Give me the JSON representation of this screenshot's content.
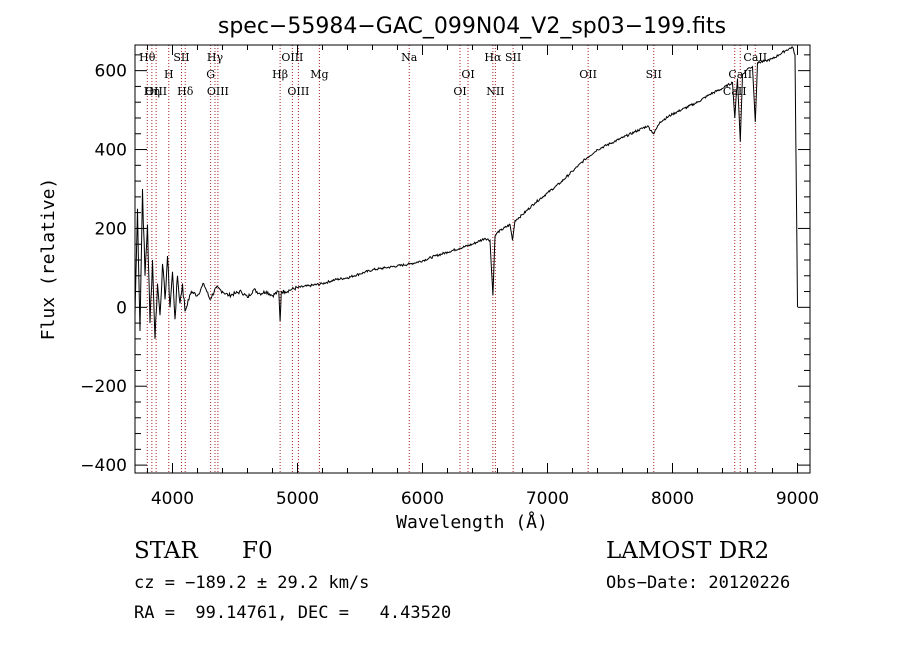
{
  "chart_data": {
    "type": "line",
    "title": "spec−55984−GAC_099N04_V2_sp03−199.fits",
    "xlabel": "Wavelength (Å)",
    "ylabel": "Flux (relative)",
    "xlim": [
      3700,
      9100
    ],
    "ylim": [
      -420,
      665
    ],
    "x_ticks": [
      4000,
      5000,
      6000,
      7000,
      8000,
      9000
    ],
    "y_ticks": [
      -400,
      -200,
      0,
      200,
      400,
      600
    ],
    "x_tick_labels": [
      "4000",
      "5000",
      "6000",
      "7000",
      "8000",
      "9000"
    ],
    "y_tick_labels": [
      "−400",
      "−200",
      "0",
      "200",
      "400",
      "600"
    ],
    "grid": false,
    "line_color": "#000000",
    "marker_line_color": "#aa2222",
    "series": [
      {
        "x": [
          3700,
          3720,
          3740,
          3760,
          3780,
          3800,
          3820,
          3840,
          3860,
          3880,
          3900,
          3920,
          3940,
          3960,
          3980,
          4000,
          4020,
          4040,
          4060,
          4080,
          4100,
          4150,
          4200,
          4250,
          4300,
          4350,
          4400,
          4450,
          4500,
          4550,
          4600,
          4650,
          4700,
          4750,
          4800,
          4850,
          4861,
          4870,
          4900,
          4950,
          5000,
          5100,
          5200,
          5300,
          5400,
          5500,
          5600,
          5700,
          5800,
          5900,
          6000,
          6100,
          6200,
          6300,
          6400,
          6500,
          6540,
          6563,
          6580,
          6600,
          6700,
          6720,
          6740,
          6800,
          6900,
          7000,
          7100,
          7200,
          7300,
          7400,
          7500,
          7600,
          7700,
          7800,
          7850,
          7900,
          8000,
          8100,
          8200,
          8300,
          8400,
          8480,
          8498,
          8520,
          8542,
          8560,
          8600,
          8640,
          8662,
          8680,
          8750,
          8800,
          8850,
          8900,
          8960,
          8980,
          9000
        ],
        "values": [
          -20,
          250,
          -60,
          300,
          80,
          210,
          -40,
          120,
          -80,
          60,
          -20,
          110,
          20,
          130,
          0,
          90,
          -30,
          80,
          10,
          60,
          -10,
          40,
          30,
          60,
          20,
          50,
          40,
          30,
          35,
          40,
          25,
          45,
          35,
          40,
          30,
          40,
          -35,
          40,
          40,
          45,
          50,
          55,
          60,
          70,
          75,
          85,
          95,
          100,
          105,
          110,
          118,
          130,
          140,
          150,
          160,
          175,
          170,
          30,
          180,
          190,
          210,
          170,
          220,
          235,
          265,
          290,
          315,
          345,
          375,
          400,
          415,
          430,
          445,
          460,
          440,
          470,
          490,
          505,
          520,
          540,
          555,
          570,
          480,
          580,
          420,
          590,
          605,
          610,
          470,
          620,
          625,
          630,
          640,
          650,
          660,
          640,
          0
        ]
      }
    ],
    "lines": [
      {
        "label": "Hθ",
        "wavelength": 3798,
        "row": 0
      },
      {
        "label": "OIII",
        "wavelength": 3869,
        "row": 2
      },
      {
        "label": "Hη",
        "wavelength": 3835,
        "row": 2
      },
      {
        "label": "H",
        "wavelength": 3970,
        "row": 1
      },
      {
        "label": "SII",
        "wavelength": 4072,
        "row": 0
      },
      {
        "label": "Hδ",
        "wavelength": 4102,
        "row": 2
      },
      {
        "label": "Hγ",
        "wavelength": 4340,
        "row": 0
      },
      {
        "label": "G",
        "wavelength": 4305,
        "row": 1
      },
      {
        "label": "OIII",
        "wavelength": 4363,
        "row": 2
      },
      {
        "label": "OIII",
        "wavelength": 4959,
        "row": 0
      },
      {
        "label": "Hβ",
        "wavelength": 4861,
        "row": 1
      },
      {
        "label": "OIII",
        "wavelength": 5007,
        "row": 2
      },
      {
        "label": "Mg",
        "wavelength": 5175,
        "row": 1
      },
      {
        "label": "Na",
        "wavelength": 5894,
        "row": 0
      },
      {
        "label": "OI",
        "wavelength": 6364,
        "row": 1
      },
      {
        "label": "OI",
        "wavelength": 6300,
        "row": 2
      },
      {
        "label": "Hα",
        "wavelength": 6563,
        "row": 0
      },
      {
        "label": "SII",
        "wavelength": 6725,
        "row": 0
      },
      {
        "label": "NII",
        "wavelength": 6583,
        "row": 2
      },
      {
        "label": "OII",
        "wavelength": 7325,
        "row": 1
      },
      {
        "label": "SII",
        "wavelength": 7850,
        "row": 1
      },
      {
        "label": "CaII",
        "wavelength": 8662,
        "row": 0
      },
      {
        "label": "CaII",
        "wavelength": 8542,
        "row": 1
      },
      {
        "label": "CaII",
        "wavelength": 8498,
        "row": 2
      }
    ]
  },
  "info": {
    "class_label": "STAR",
    "subclass": "F0",
    "survey": "LAMOST DR2",
    "cz": "cz = −189.2 ± 29.2 km/s",
    "obs_date": "Obs−Date: 20120226",
    "coords": "RA =  99.14761, DEC =   4.43520"
  }
}
